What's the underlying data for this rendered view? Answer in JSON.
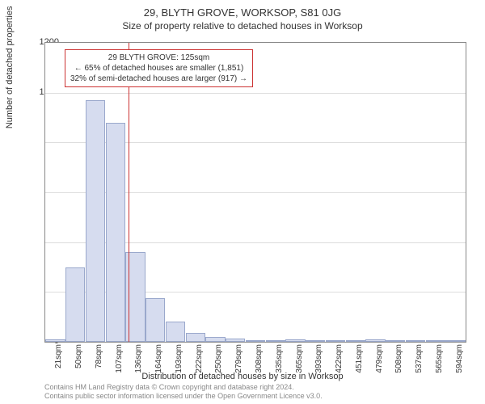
{
  "header": {
    "title": "29, BLYTH GROVE, WORKSOP, S81 0JG",
    "subtitle": "Size of property relative to detached houses in Worksop"
  },
  "chart": {
    "type": "histogram",
    "ylabel": "Number of detached properties",
    "xlabel": "Distribution of detached houses by size in Worksop",
    "ylim": [
      0,
      1200
    ],
    "ytick_step": 200,
    "xticks": [
      "21sqm",
      "50sqm",
      "78sqm",
      "107sqm",
      "136sqm",
      "164sqm",
      "193sqm",
      "222sqm",
      "250sqm",
      "279sqm",
      "308sqm",
      "335sqm",
      "365sqm",
      "393sqm",
      "422sqm",
      "451sqm",
      "479sqm",
      "508sqm",
      "537sqm",
      "565sqm",
      "594sqm"
    ],
    "values": [
      10,
      300,
      970,
      880,
      360,
      175,
      80,
      35,
      20,
      12,
      8,
      6,
      10,
      4,
      3,
      2,
      10,
      1,
      1,
      0,
      0
    ],
    "bar_fill": "#d6dcef",
    "bar_border": "#9aa8cc",
    "grid_color": "#dddddd",
    "axis_color": "#888888",
    "background": "#ffffff",
    "marker": {
      "position_index": 3.65,
      "color": "#cc3333"
    },
    "callout": {
      "border_color": "#cc3333",
      "lines": [
        "29 BLYTH GROVE: 125sqm",
        "← 65% of detached houses are smaller (1,851)",
        "32% of semi-detached houses are larger (917) →"
      ]
    }
  },
  "attribution": {
    "line1": "Contains HM Land Registry data © Crown copyright and database right 2024.",
    "line2": "Contains public sector information licensed under the Open Government Licence v3.0."
  }
}
